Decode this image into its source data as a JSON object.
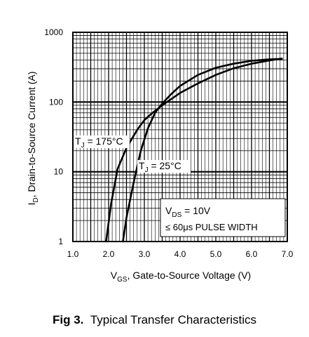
{
  "chart_data": {
    "type": "line",
    "title": "",
    "xlabel": {
      "main": "V",
      "sub": "GS",
      "rest": ", Gate-to-Source Voltage (V)"
    },
    "ylabel": {
      "main": "I",
      "sub": "D",
      "rest": ", Drain-to-Source Current  (A)"
    },
    "x_scale": "linear",
    "y_scale": "log",
    "xlim": [
      1.0,
      7.0
    ],
    "ylim": [
      1,
      1000
    ],
    "x_ticks": [
      "1.0",
      "2.0",
      "3.0",
      "4.0",
      "5.0",
      "6.0",
      "7.0"
    ],
    "y_ticks": [
      "1",
      "10",
      "100",
      "1000"
    ],
    "grid": true,
    "series": [
      {
        "name": "TJ = 175°C",
        "x": [
          1.93,
          2.07,
          2.25,
          2.5,
          2.8,
          3.0,
          3.2,
          3.5,
          4.0,
          4.5,
          5.0,
          5.5,
          6.0,
          6.5,
          6.85
        ],
        "values": [
          1.0,
          3.5,
          11,
          22,
          40,
          55,
          68,
          90,
          135,
          185,
          245,
          305,
          355,
          395,
          420
        ]
      },
      {
        "name": "TJ = 25°C",
        "x": [
          2.4,
          2.5,
          2.7,
          2.9,
          3.1,
          3.3,
          3.5,
          3.75,
          4.0,
          4.5,
          5.0,
          5.5,
          6.0,
          6.5,
          6.85
        ],
        "values": [
          1.0,
          2.2,
          7,
          20,
          42,
          70,
          95,
          130,
          170,
          245,
          310,
          355,
          390,
          410,
          415
        ]
      }
    ],
    "annotations": {
      "t175": {
        "main": "T",
        "sub": "J",
        "rest": " = 175°C"
      },
      "t25": {
        "main": "T",
        "sub": "J",
        "rest": " = 25°C"
      },
      "vds": {
        "main": "V",
        "sub": "DS",
        "rest": " = 10V"
      },
      "pulse": "≤ 60μs PULSE WIDTH"
    }
  },
  "caption": {
    "fig": "Fig 3.",
    "text": "Typical Transfer Characteristics"
  }
}
